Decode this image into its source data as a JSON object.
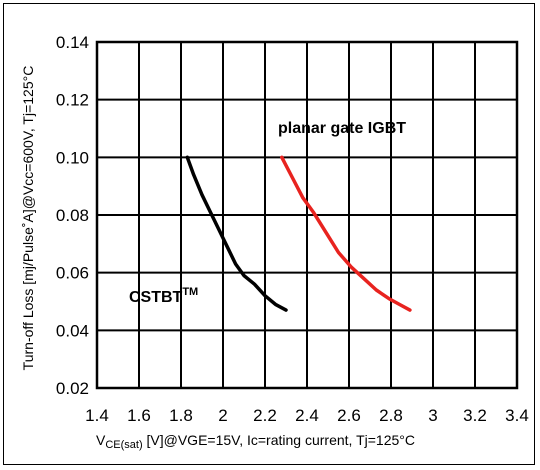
{
  "chart_data": {
    "type": "line",
    "xlabel_main": "V",
    "xlabel_sub": "CE(sat)",
    "xlabel_rest": " [V]@VGE=15V, Ic=rating current, Tj=125°C",
    "ylabel": "Turn-off Loss [mj/Pulse˚A]@Vcc=600V, Tj=125°C",
    "xlim": [
      1.4,
      3.4
    ],
    "ylim": [
      0.02,
      0.14
    ],
    "x_ticks": [
      "1.4",
      "1.6",
      "1.8",
      "2",
      "2.2",
      "2.4",
      "2.6",
      "2.8",
      "3",
      "3.2",
      "3.4"
    ],
    "y_ticks": [
      "0.02",
      "0.04",
      "0.06",
      "0.08",
      "0.10",
      "0.12",
      "0.14"
    ],
    "grid": true,
    "series": [
      {
        "name": "CSTBT",
        "color": "#000000",
        "x": [
          1.83,
          1.86,
          1.9,
          1.94,
          1.98,
          2.02,
          2.06,
          2.1,
          2.15,
          2.2,
          2.25,
          2.3
        ],
        "y": [
          0.1,
          0.094,
          0.087,
          0.081,
          0.075,
          0.069,
          0.063,
          0.059,
          0.056,
          0.052,
          0.049,
          0.047
        ]
      },
      {
        "name": "planar gate IGBT",
        "color": "#e8231f",
        "x": [
          2.28,
          2.33,
          2.38,
          2.43,
          2.49,
          2.55,
          2.61,
          2.67,
          2.73,
          2.79,
          2.84,
          2.89
        ],
        "y": [
          0.1,
          0.093,
          0.086,
          0.081,
          0.074,
          0.067,
          0.062,
          0.058,
          0.054,
          0.051,
          0.049,
          0.047
        ]
      }
    ],
    "annotations": {
      "cstbt_text": "CSTBT",
      "cstbt_sup": "TM",
      "planar_text": "planar gate IGBT"
    }
  }
}
